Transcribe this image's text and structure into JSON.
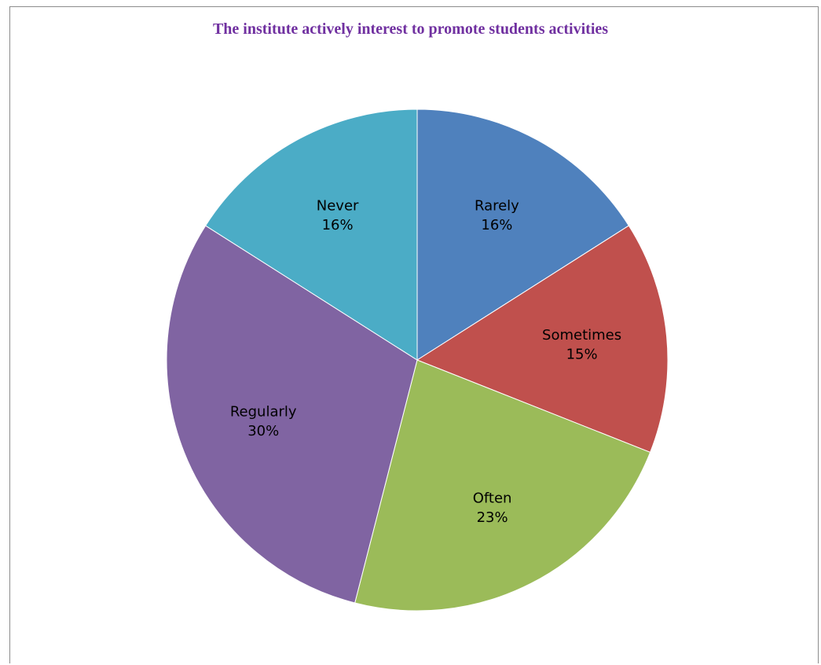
{
  "chart_data": {
    "type": "pie",
    "title": "The institute actively interest to promote students activities",
    "slices": [
      {
        "label": "Rarely",
        "value": 16,
        "pct_text": "16%",
        "color": "#4f81bd"
      },
      {
        "label": "Sometimes",
        "value": 15,
        "pct_text": "15%",
        "color": "#c0504d"
      },
      {
        "label": "Often",
        "value": 23,
        "pct_text": "23%",
        "color": "#9bbb59"
      },
      {
        "label": "Regularly",
        "value": 30,
        "pct_text": "30%",
        "color": "#8064a2"
      },
      {
        "label": "Never",
        "value": 16,
        "pct_text": "16%",
        "color": "#4bacc6"
      }
    ],
    "start_angle_deg": 0,
    "direction": "clockwise",
    "legend": "none",
    "title_color": "#7030a0"
  }
}
